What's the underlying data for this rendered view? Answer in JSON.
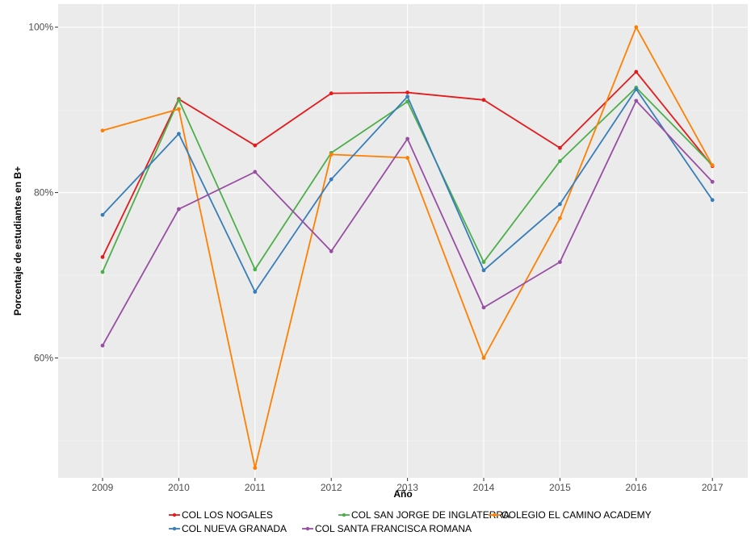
{
  "chart_data": {
    "type": "line",
    "title": "",
    "xlabel": "Año",
    "ylabel": "Porcentaje de estudiantes en B+",
    "x": [
      "2009",
      "2010",
      "2011",
      "2012",
      "2013",
      "2014",
      "2015",
      "2016",
      "2017"
    ],
    "ylim": [
      45.5,
      102.8
    ],
    "y_ticks": [
      60,
      80,
      100
    ],
    "y_tick_labels": [
      "60%",
      "80%",
      "100%"
    ],
    "grid": true,
    "legend_position": "bottom",
    "series": [
      {
        "name": "COL LOS NOGALES",
        "color": "#e41a1c",
        "values": [
          72.2,
          91.3,
          85.7,
          92.0,
          92.1,
          91.2,
          85.4,
          94.6,
          83.2
        ]
      },
      {
        "name": "COL SAN JORGE DE INGLATERRA",
        "color": "#4daf4a",
        "values": [
          70.4,
          91.2,
          70.7,
          84.8,
          91.0,
          71.6,
          83.8,
          92.7,
          83.3
        ]
      },
      {
        "name": "COLEGIO EL CAMINO ACADEMY",
        "color": "#ff7f00",
        "values": [
          87.5,
          90.1,
          46.7,
          84.6,
          84.2,
          60.0,
          76.9,
          100.0,
          83.3
        ]
      },
      {
        "name": "COL NUEVA GRANADA",
        "color": "#377eb8",
        "values": [
          77.3,
          87.1,
          68.0,
          81.6,
          91.6,
          70.6,
          78.6,
          92.5,
          79.1
        ]
      },
      {
        "name": "COL SANTA FRANCISCA ROMANA",
        "color": "#984ea3",
        "values": [
          61.5,
          78.0,
          82.5,
          72.9,
          86.5,
          66.1,
          71.6,
          91.1,
          81.3
        ]
      }
    ]
  }
}
